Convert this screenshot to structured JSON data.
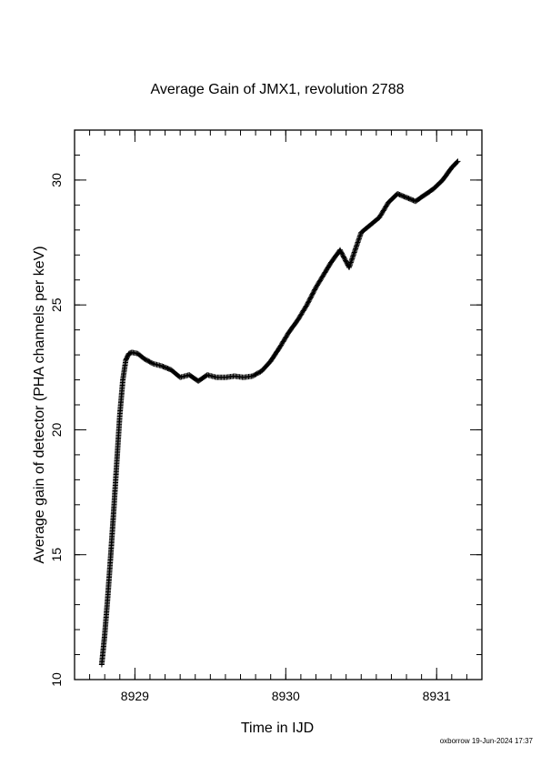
{
  "chart_data": {
    "type": "scatter",
    "title": "Average Gain of JMX1, revolution 2788",
    "xlabel": "Time in IJD",
    "ylabel": "Average gain of detector (PHA channels per keV)",
    "xlim": [
      8928.6,
      8931.3
    ],
    "ylim": [
      10,
      32
    ],
    "x_ticks": [
      8929,
      8930,
      8931
    ],
    "x_tick_labels": [
      "8929",
      "8930",
      "8931"
    ],
    "y_ticks": [
      10,
      15,
      20,
      25,
      30
    ],
    "y_tick_labels": [
      "10",
      "15",
      "20",
      "25",
      "30"
    ],
    "x_minor_step": 0.1,
    "y_minor_step": 1,
    "grid": false,
    "marker": "plus",
    "color": "#000000",
    "series": [
      {
        "values": [
          [
            8928.78,
            10.6
          ],
          [
            8928.8,
            11.8
          ],
          [
            8928.82,
            13.3
          ],
          [
            8928.84,
            15.0
          ],
          [
            8928.86,
            16.8
          ],
          [
            8928.88,
            18.7
          ],
          [
            8928.9,
            20.6
          ],
          [
            8928.92,
            22.0
          ],
          [
            8928.94,
            22.8
          ],
          [
            8928.96,
            23.05
          ],
          [
            8928.98,
            23.1
          ],
          [
            8929.02,
            23.05
          ],
          [
            8929.06,
            22.85
          ],
          [
            8929.12,
            22.65
          ],
          [
            8929.18,
            22.55
          ],
          [
            8929.24,
            22.4
          ],
          [
            8929.3,
            22.1
          ],
          [
            8929.36,
            22.2
          ],
          [
            8929.42,
            21.95
          ],
          [
            8929.48,
            22.2
          ],
          [
            8929.54,
            22.1
          ],
          [
            8929.6,
            22.1
          ],
          [
            8929.66,
            22.15
          ],
          [
            8929.72,
            22.1
          ],
          [
            8929.78,
            22.15
          ],
          [
            8929.84,
            22.35
          ],
          [
            8929.9,
            22.75
          ],
          [
            8929.96,
            23.3
          ],
          [
            8930.02,
            23.9
          ],
          [
            8930.08,
            24.4
          ],
          [
            8930.14,
            25.0
          ],
          [
            8930.2,
            25.7
          ],
          [
            8930.26,
            26.3
          ],
          [
            8930.3,
            26.7
          ],
          [
            8930.36,
            27.2
          ],
          [
            8930.42,
            26.5
          ],
          [
            8930.46,
            27.2
          ],
          [
            8930.5,
            27.9
          ],
          [
            8930.56,
            28.2
          ],
          [
            8930.62,
            28.5
          ],
          [
            8930.68,
            29.1
          ],
          [
            8930.74,
            29.45
          ],
          [
            8930.8,
            29.3
          ],
          [
            8930.86,
            29.15
          ],
          [
            8930.92,
            29.4
          ],
          [
            8930.98,
            29.65
          ],
          [
            8931.04,
            30.0
          ],
          [
            8931.1,
            30.5
          ],
          [
            8931.14,
            30.75
          ]
        ]
      }
    ]
  },
  "footer": {
    "stamp": "oxborrow 19-Jun-2024 17:37"
  }
}
